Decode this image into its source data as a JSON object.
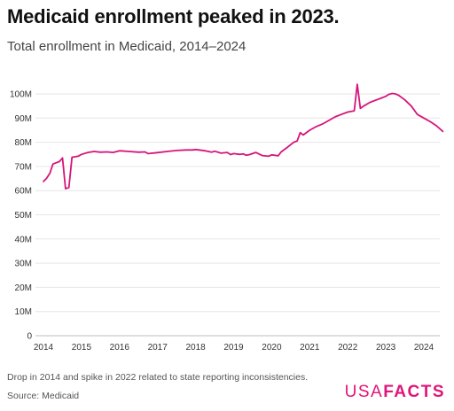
{
  "header": {
    "title": "Medicaid enrollment peaked in 2023.",
    "subtitle": "Total enrollment in Medicaid, 2014–2024"
  },
  "footer": {
    "note": "Drop in 2014 and spike in 2022 related to state reporting inconsistencies.",
    "source": "Source: Medicaid",
    "logo_usa": "USA",
    "logo_facts": "FACTS"
  },
  "colors": {
    "line": "#d6157a",
    "grid": "#e6e6e6",
    "axis": "#bdbdbd"
  },
  "chart_data": {
    "type": "line",
    "title": "Medicaid enrollment peaked in 2023.",
    "subtitle": "Total enrollment in Medicaid, 2014–2024",
    "xlabel": "",
    "ylabel": "",
    "xlim": [
      2014,
      2024.6
    ],
    "ylim": [
      0,
      100
    ],
    "y_unit": "M",
    "y_ticks": [
      0,
      10,
      20,
      30,
      40,
      50,
      60,
      70,
      80,
      90,
      100
    ],
    "y_tick_labels": [
      "0",
      "10M",
      "20M",
      "30M",
      "40M",
      "50M",
      "60M",
      "70M",
      "80M",
      "90M",
      "100M"
    ],
    "x_ticks": [
      2014,
      2015,
      2016,
      2017,
      2018,
      2019,
      2020,
      2021,
      2022,
      2023,
      2024
    ],
    "x_tick_labels": [
      "2014",
      "2015",
      "2016",
      "2017",
      "2018",
      "2019",
      "2020",
      "2021",
      "2022",
      "2023",
      "2024"
    ],
    "grid": "horizontal",
    "series": [
      {
        "x": [
          2014.0,
          2014.08,
          2014.17,
          2014.25,
          2014.33,
          2014.42,
          2014.5,
          2014.58,
          2014.67,
          2014.75,
          2014.83,
          2014.92,
          2015.0,
          2015.17,
          2015.33,
          2015.5,
          2015.67,
          2015.83,
          2016.0,
          2016.25,
          2016.5,
          2016.67,
          2016.75,
          2017.0,
          2017.25,
          2017.5,
          2017.75,
          2017.92,
          2018.0,
          2018.25,
          2018.42,
          2018.5,
          2018.67,
          2018.83,
          2018.92,
          2019.0,
          2019.17,
          2019.25,
          2019.33,
          2019.42,
          2019.58,
          2019.75,
          2019.92,
          2020.0,
          2020.17,
          2020.25,
          2020.42,
          2020.58,
          2020.67,
          2020.75,
          2020.83,
          2021.0,
          2021.17,
          2021.33,
          2021.5,
          2021.67,
          2021.83,
          2022.0,
          2022.17,
          2022.25,
          2022.33,
          2022.42,
          2022.58,
          2022.75,
          2022.92,
          2023.0,
          2023.08,
          2023.17,
          2023.25,
          2023.33,
          2023.5,
          2023.67,
          2023.83,
          2024.0,
          2024.17,
          2024.33,
          2024.5
        ],
        "values": [
          63.8,
          65.0,
          67.2,
          71.0,
          71.5,
          72.0,
          73.5,
          60.8,
          61.3,
          73.8,
          74.0,
          74.3,
          75.0,
          75.8,
          76.2,
          75.9,
          76.0,
          75.8,
          76.5,
          76.2,
          75.9,
          76.0,
          75.3,
          75.7,
          76.2,
          76.6,
          76.8,
          76.8,
          77.0,
          76.5,
          75.9,
          76.3,
          75.5,
          75.8,
          74.9,
          75.3,
          75.0,
          75.2,
          74.6,
          74.9,
          75.8,
          74.5,
          74.2,
          74.8,
          74.4,
          76.0,
          78.0,
          80.0,
          80.5,
          84.0,
          83.0,
          85.0,
          86.5,
          87.5,
          89.0,
          90.5,
          91.5,
          92.5,
          93.0,
          104.0,
          94.0,
          95.0,
          96.5,
          97.5,
          98.5,
          99.0,
          99.8,
          100.2,
          100.0,
          99.5,
          97.5,
          95.0,
          91.5,
          90.0,
          88.5,
          86.8,
          84.5
        ]
      }
    ],
    "annotations": [
      "Drop in 2014 and spike in 2022 related to state reporting inconsistencies."
    ]
  }
}
